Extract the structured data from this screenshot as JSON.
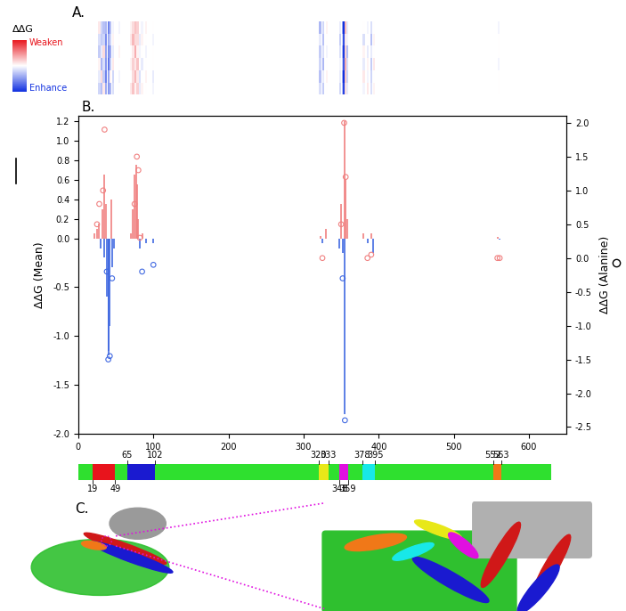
{
  "panel_labels": [
    "A.",
    "B.",
    "C."
  ],
  "chart_data": [
    {
      "type": "heatmap",
      "tick_labels": false,
      "colorbar": {
        "title": "ΔΔG",
        "top_label": "Weaken",
        "bottom_label": "Enhance",
        "range": [
          -2.0,
          2.0
        ]
      },
      "x": [
        28,
        31,
        34,
        37,
        40,
        43,
        46,
        55,
        70,
        73,
        76,
        79,
        82,
        85,
        90,
        100,
        322,
        326,
        331,
        349,
        352,
        354,
        356,
        358,
        380,
        385,
        390,
        394,
        560
      ],
      "cells": [
        [
          -0.4,
          -0.6,
          0.2,
          -0.8,
          -1.0,
          -0.7,
          -0.3,
          0.0,
          0.2,
          0.5,
          0.1,
          0.4,
          -0.2,
          0.1,
          0.0,
          -0.1,
          -0.3,
          -0.5,
          0.0,
          -0.4,
          -0.6,
          -1.8,
          0.3,
          -0.2,
          -0.1,
          0.2,
          -0.3,
          0.1,
          0.0
        ],
        [
          -0.2,
          0.3,
          -0.5,
          -1.2,
          -0.9,
          0.1,
          -0.4,
          -0.1,
          0.0,
          0.3,
          0.6,
          0.2,
          -0.3,
          0.0,
          0.1,
          -0.2,
          -0.6,
          -0.2,
          0.1,
          -0.2,
          -0.8,
          -2.0,
          0.5,
          -0.4,
          0.2,
          -0.1,
          -0.4,
          0.0,
          0.0
        ],
        [
          0.1,
          -0.7,
          -0.3,
          -1.0,
          -1.3,
          -0.5,
          0.2,
          0.0,
          0.1,
          0.4,
          0.2,
          0.5,
          0.0,
          -0.2,
          0.0,
          0.0,
          -0.4,
          -0.7,
          0.0,
          -0.1,
          -0.5,
          -1.6,
          0.7,
          -0.3,
          -0.2,
          0.1,
          -0.5,
          0.2,
          -0.1
        ],
        [
          -0.5,
          -0.2,
          0.3,
          -0.9,
          -1.1,
          -0.8,
          -0.2,
          0.1,
          0.0,
          0.2,
          0.7,
          0.1,
          -0.1,
          0.0,
          -0.1,
          0.0,
          -0.5,
          -0.3,
          -0.1,
          -0.3,
          -0.7,
          -1.9,
          0.4,
          -0.6,
          0.1,
          -0.2,
          -0.2,
          0.0,
          0.0
        ],
        [
          -0.3,
          -0.5,
          -0.4,
          -1.1,
          -0.8,
          -0.4,
          0.1,
          0.0,
          0.2,
          0.6,
          0.3,
          0.3,
          -0.2,
          0.1,
          0.0,
          -0.1,
          -0.2,
          -0.6,
          0.0,
          -0.5,
          -0.4,
          -1.7,
          0.2,
          -0.1,
          -0.3,
          0.0,
          -0.6,
          0.1,
          0.0
        ],
        [
          0.2,
          -0.4,
          -0.6,
          -0.7,
          -1.2,
          -0.6,
          -0.1,
          -0.1,
          0.1,
          0.3,
          0.5,
          0.4,
          0.0,
          -0.1,
          0.1,
          0.0,
          -0.7,
          -0.4,
          0.1,
          -0.2,
          -0.9,
          -2.0,
          0.6,
          -0.2,
          0.0,
          -0.1,
          -0.3,
          0.0,
          -0.1
        ]
      ]
    },
    {
      "type": "stem_scatter",
      "y_label": "ΔΔG (Mean)",
      "y2_label": "ΔΔG (Alanine)",
      "xlim": [
        0,
        650
      ],
      "xticks": [
        0,
        100,
        200,
        300,
        400,
        500,
        600
      ],
      "ylim": [
        -2.0,
        1.25
      ],
      "yticks": [
        -2.0,
        -1.5,
        -1.0,
        -0.5,
        0.0,
        0.2,
        0.4,
        0.6,
        0.8,
        1.0,
        1.2
      ],
      "y2lim": [
        -2.6,
        2.1
      ],
      "y2ticks": [
        -2.5,
        -2.0,
        -1.5,
        -1.0,
        -0.5,
        0.0,
        0.5,
        1.0,
        1.5,
        2.0
      ],
      "series": [
        {
          "type": "stem",
          "marker": "line",
          "x": [
            22,
            25,
            28,
            30,
            32,
            34,
            35,
            37,
            38,
            40,
            41,
            42,
            44,
            45,
            47,
            70,
            72,
            75,
            77,
            78,
            80,
            82,
            85,
            90,
            95,
            100,
            322,
            325,
            330,
            348,
            350,
            352,
            354,
            355,
            356,
            358,
            380,
            385,
            390,
            393,
            558,
            561
          ],
          "values": [
            0.05,
            0.1,
            0.15,
            -0.1,
            0.3,
            0.65,
            -0.2,
            0.35,
            -0.6,
            -1.2,
            -1.15,
            -0.9,
            0.4,
            -0.3,
            -0.1,
            0.05,
            0.3,
            0.65,
            0.75,
            0.55,
            0.2,
            -0.1,
            0.05,
            -0.05,
            0.0,
            -0.05,
            0.02,
            -0.05,
            0.1,
            -0.1,
            0.35,
            -0.15,
            1.2,
            -1.8,
            0.6,
            0.2,
            0.05,
            -0.05,
            0.05,
            -0.15,
            0.01,
            -0.01
          ],
          "colors": [
            "lightcoral",
            "lightcoral",
            "lightcoral",
            "royalblue",
            "lightcoral",
            "lightcoral",
            "royalblue",
            "lightcoral",
            "royalblue",
            "royalblue",
            "royalblue",
            "royalblue",
            "lightcoral",
            "royalblue",
            "royalblue",
            "lightcoral",
            "lightcoral",
            "lightcoral",
            "lightcoral",
            "lightcoral",
            "lightcoral",
            "royalblue",
            "lightcoral",
            "royalblue",
            "lightcoral",
            "royalblue",
            "lightcoral",
            "royalblue",
            "lightcoral",
            "royalblue",
            "lightcoral",
            "royalblue",
            "lightcoral",
            "royalblue",
            "lightcoral",
            "lightcoral",
            "lightcoral",
            "royalblue",
            "lightcoral",
            "royalblue",
            "lightcoral",
            "royalblue"
          ]
        },
        {
          "type": "scatter",
          "axis": "y2",
          "marker": "circle",
          "x": [
            25,
            28,
            33,
            35,
            38,
            40,
            42,
            45,
            75,
            78,
            80,
            82,
            85,
            100,
            325,
            350,
            352,
            354,
            355,
            356,
            385,
            390,
            558,
            561
          ],
          "values": [
            0.5,
            0.8,
            1.0,
            1.9,
            -0.2,
            -1.5,
            -1.45,
            -0.3,
            0.8,
            1.5,
            1.3,
            0.3,
            -0.2,
            -0.1,
            0.0,
            0.5,
            -0.3,
            2.0,
            -2.4,
            1.2,
            0.0,
            0.05,
            0.0,
            0.0
          ],
          "colors": [
            "lightcoral",
            "lightcoral",
            "lightcoral",
            "lightcoral",
            "royalblue",
            "royalblue",
            "royalblue",
            "royalblue",
            "lightcoral",
            "lightcoral",
            "lightcoral",
            "lightcoral",
            "royalblue",
            "royalblue",
            "lightcoral",
            "lightcoral",
            "royalblue",
            "lightcoral",
            "royalblue",
            "lightcoral",
            "lightcoral",
            "lightcoral",
            "lightcoral",
            "lightcoral"
          ]
        }
      ]
    },
    {
      "type": "domain_bar",
      "length": 630,
      "color": "#2fe02f",
      "domains": [
        {
          "start": 19,
          "end": 49,
          "color": "#e8141c",
          "label_side": "below"
        },
        {
          "start": 65,
          "end": 102,
          "color": "#1a1ad0",
          "label_side": "above"
        },
        {
          "start": 320,
          "end": 333,
          "color": "#e8e818",
          "label_side": "above"
        },
        {
          "start": 348,
          "end": 359,
          "color": "#e010e0",
          "label_side": "below"
        },
        {
          "start": 378,
          "end": 395,
          "color": "#18e8e8",
          "label_side": "above"
        },
        {
          "start": 552,
          "end": 563,
          "color": "#f07818",
          "label_side": "above"
        }
      ]
    }
  ]
}
